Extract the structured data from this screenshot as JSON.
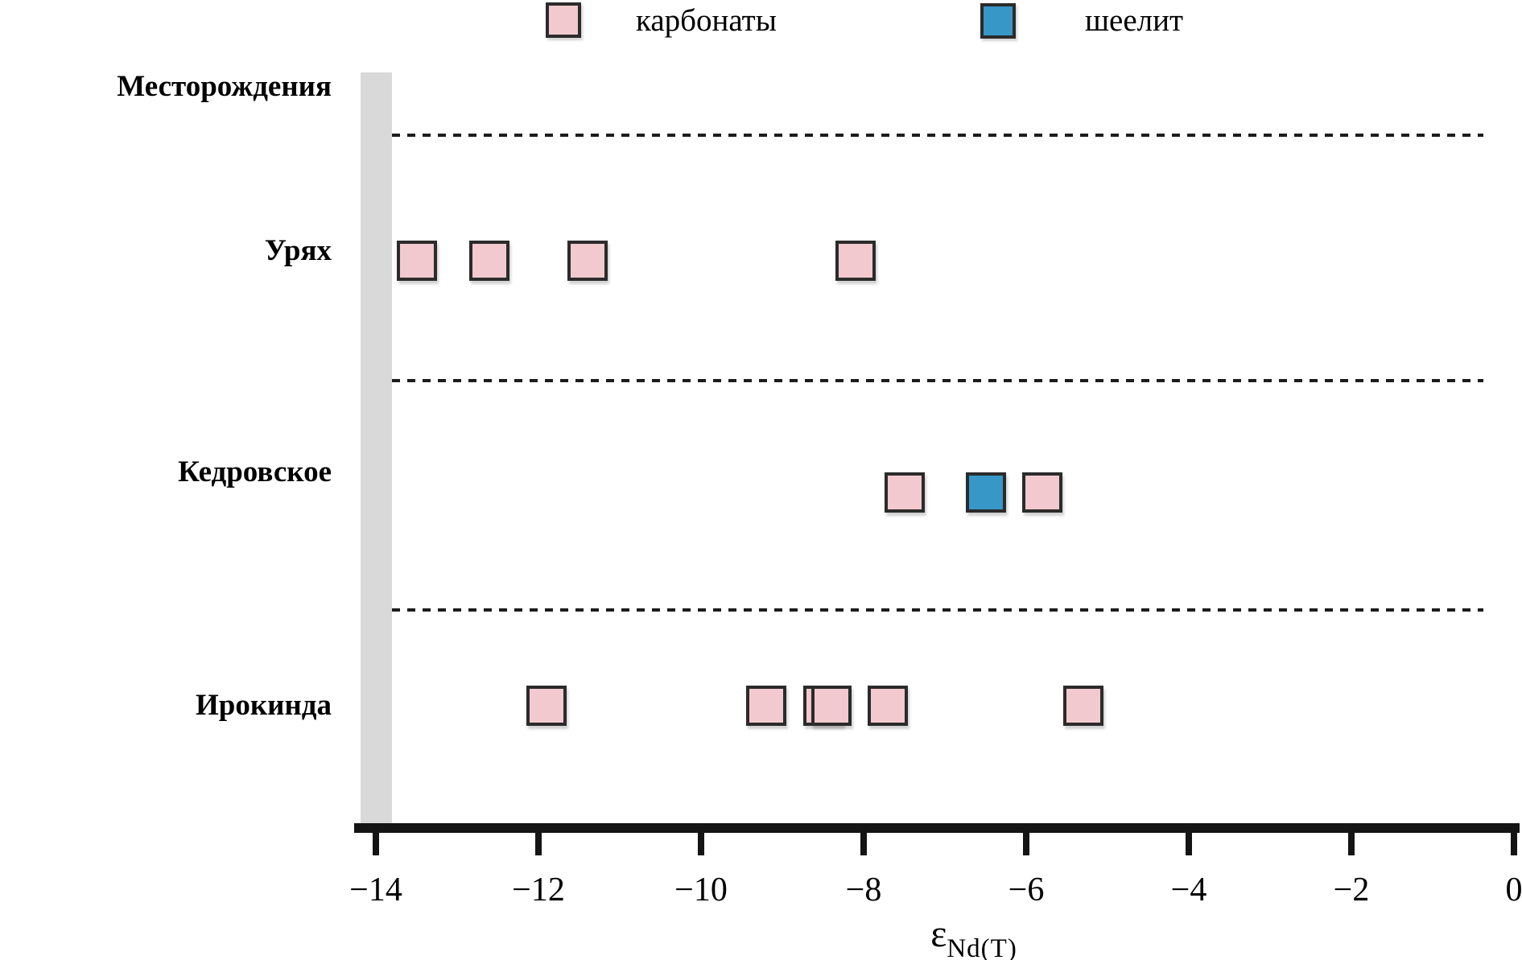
{
  "legend": {
    "items": [
      {
        "id": "carbonates",
        "label": "карбонаты",
        "color": "#f1c9cf"
      },
      {
        "id": "scheelite",
        "label": "шеелит",
        "color": "#3798c8"
      }
    ]
  },
  "axis_title_y": "Месторождения",
  "x_axis": {
    "epsilon": "ε",
    "subscript": "Nd(T)",
    "min": -14,
    "max": 0,
    "tick_values": [
      -14,
      -12,
      -10,
      -8,
      -6,
      -4,
      -2,
      0
    ],
    "tick_labels": [
      "−14",
      "−12",
      "−10",
      "−8",
      "−6",
      "−4",
      "−2",
      "0"
    ]
  },
  "chart_data": {
    "type": "scatter",
    "title": "",
    "xlabel": "εNd(T)",
    "ylabel": "Месторождения",
    "xlim": [
      -14.35,
      0.1
    ],
    "grid": "dotted horizontal separators between category bands",
    "legend_position": "top",
    "categories": [
      "Урях",
      "Кедровское",
      "Ирокинда"
    ],
    "series": [
      {
        "name": "карбонаты",
        "color": "#f1c9cf",
        "points": [
          {
            "category": "Урях",
            "x": -13.5
          },
          {
            "category": "Урях",
            "x": -12.6
          },
          {
            "category": "Урях",
            "x": -11.4
          },
          {
            "category": "Урях",
            "x": -8.1
          },
          {
            "category": "Кедровское",
            "x": -7.5
          },
          {
            "category": "Кедровское",
            "x": -5.8
          },
          {
            "category": "Ирокинда",
            "x": -11.9
          },
          {
            "category": "Ирокинда",
            "x": -9.2
          },
          {
            "category": "Ирокинда",
            "x": -8.5
          },
          {
            "category": "Ирокинда",
            "x": -8.4
          },
          {
            "category": "Ирокинда",
            "x": -7.7
          },
          {
            "category": "Ирокинда",
            "x": -5.3
          }
        ]
      },
      {
        "name": "шеелит",
        "color": "#3798c8",
        "points": [
          {
            "category": "Кедровское",
            "x": -6.5
          }
        ]
      }
    ]
  }
}
